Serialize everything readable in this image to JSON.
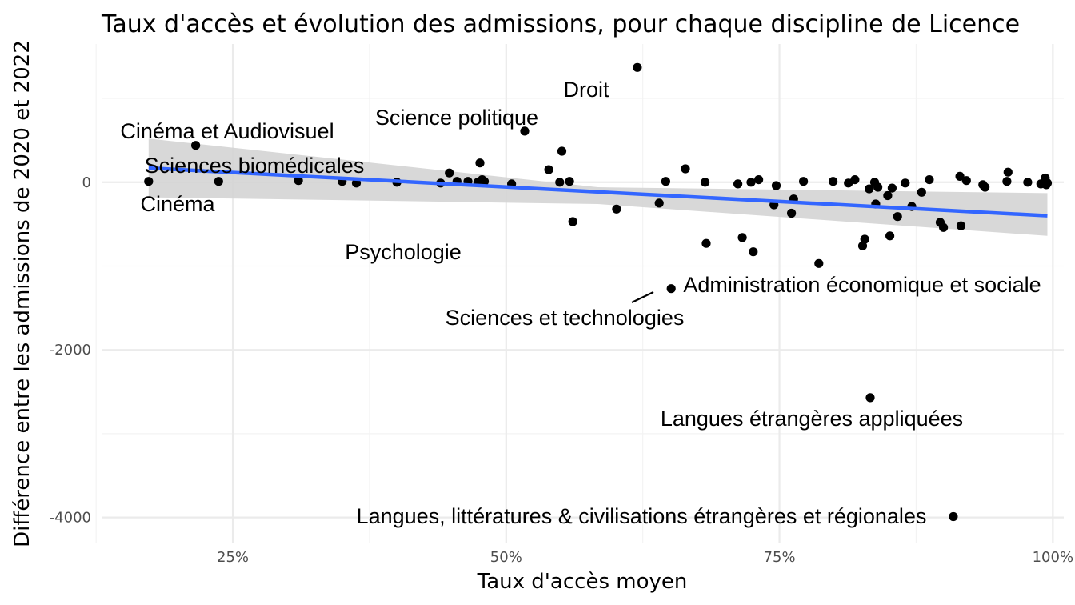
{
  "chart_data": {
    "type": "scatter",
    "title": "Taux d'accès et évolution des admissions, pour chaque discipline de Licence",
    "xlabel": "Taux d'accès moyen",
    "ylabel": "Différence entre les admissions de 2020 et 2022",
    "xlim": [
      0.13,
      1.01
    ],
    "ylim": [
      -4300,
      1650
    ],
    "x_ticks": [
      {
        "value": 0.25,
        "label": "25%"
      },
      {
        "value": 0.5,
        "label": "50%"
      },
      {
        "value": 0.75,
        "label": "75%"
      },
      {
        "value": 1.0,
        "label": "100%"
      }
    ],
    "y_ticks": [
      {
        "value": -4000,
        "label": "-4000"
      },
      {
        "value": -2000,
        "label": "-2000"
      },
      {
        "value": 0,
        "label": "0"
      }
    ],
    "grid": true,
    "point_color": "#000000",
    "trend_line": {
      "method": "lm",
      "color": "#3366ff",
      "band_color": "#d4d4d4",
      "x_range": [
        0.173,
        0.995
      ],
      "y_start": 170,
      "y_end": -400,
      "band_upper_start": 520,
      "band_lower_start": -180,
      "band_upper_mid": -60,
      "band_lower_mid": -260,
      "band_upper_end": -130,
      "band_lower_end": -640
    },
    "points": [
      {
        "x": 0.173,
        "y": 10
      },
      {
        "x": 0.216,
        "y": 440
      },
      {
        "x": 0.237,
        "y": 10
      },
      {
        "x": 0.31,
        "y": 20
      },
      {
        "x": 0.35,
        "y": 10
      },
      {
        "x": 0.363,
        "y": -10
      },
      {
        "x": 0.4,
        "y": 0
      },
      {
        "x": 0.44,
        "y": -10
      },
      {
        "x": 0.448,
        "y": 110
      },
      {
        "x": 0.455,
        "y": 10
      },
      {
        "x": 0.465,
        "y": 10
      },
      {
        "x": 0.474,
        "y": 0
      },
      {
        "x": 0.476,
        "y": 230
      },
      {
        "x": 0.478,
        "y": 30
      },
      {
        "x": 0.48,
        "y": 10
      },
      {
        "x": 0.505,
        "y": -20
      },
      {
        "x": 0.517,
        "y": 610
      },
      {
        "x": 0.539,
        "y": 150
      },
      {
        "x": 0.549,
        "y": 0
      },
      {
        "x": 0.551,
        "y": 370
      },
      {
        "x": 0.558,
        "y": 10
      },
      {
        "x": 0.561,
        "y": -470
      },
      {
        "x": 0.601,
        "y": -320
      },
      {
        "x": 0.62,
        "y": 1370
      },
      {
        "x": 0.64,
        "y": -250
      },
      {
        "x": 0.646,
        "y": 10
      },
      {
        "x": 0.651,
        "y": -1270
      },
      {
        "x": 0.664,
        "y": 160
      },
      {
        "x": 0.682,
        "y": 0
      },
      {
        "x": 0.683,
        "y": -730
      },
      {
        "x": 0.712,
        "y": -20
      },
      {
        "x": 0.716,
        "y": -660
      },
      {
        "x": 0.724,
        "y": 0
      },
      {
        "x": 0.726,
        "y": -830
      },
      {
        "x": 0.731,
        "y": 30
      },
      {
        "x": 0.745,
        "y": -270
      },
      {
        "x": 0.747,
        "y": -40
      },
      {
        "x": 0.761,
        "y": -370
      },
      {
        "x": 0.763,
        "y": -200
      },
      {
        "x": 0.772,
        "y": 10
      },
      {
        "x": 0.786,
        "y": -970
      },
      {
        "x": 0.799,
        "y": 10
      },
      {
        "x": 0.813,
        "y": -10
      },
      {
        "x": 0.819,
        "y": 30
      },
      {
        "x": 0.826,
        "y": -760
      },
      {
        "x": 0.828,
        "y": -680
      },
      {
        "x": 0.832,
        "y": -80
      },
      {
        "x": 0.833,
        "y": -2570
      },
      {
        "x": 0.837,
        "y": 0
      },
      {
        "x": 0.838,
        "y": -260
      },
      {
        "x": 0.84,
        "y": -60
      },
      {
        "x": 0.849,
        "y": -160
      },
      {
        "x": 0.851,
        "y": -640
      },
      {
        "x": 0.853,
        "y": -70
      },
      {
        "x": 0.858,
        "y": -410
      },
      {
        "x": 0.865,
        "y": -10
      },
      {
        "x": 0.871,
        "y": -290
      },
      {
        "x": 0.88,
        "y": -120
      },
      {
        "x": 0.887,
        "y": 30
      },
      {
        "x": 0.897,
        "y": -480
      },
      {
        "x": 0.9,
        "y": -540
      },
      {
        "x": 0.909,
        "y": -3990
      },
      {
        "x": 0.915,
        "y": 70
      },
      {
        "x": 0.916,
        "y": -520
      },
      {
        "x": 0.921,
        "y": 20
      },
      {
        "x": 0.936,
        "y": -30
      },
      {
        "x": 0.938,
        "y": -60
      },
      {
        "x": 0.958,
        "y": 10
      },
      {
        "x": 0.959,
        "y": 120
      },
      {
        "x": 0.977,
        "y": 0
      },
      {
        "x": 0.989,
        "y": -20
      },
      {
        "x": 0.993,
        "y": 50
      },
      {
        "x": 0.994,
        "y": -30
      },
      {
        "x": 0.995,
        "y": -10
      }
    ],
    "annotations": [
      {
        "text": "Droit"
      },
      {
        "text": "Science politique"
      },
      {
        "text": "Cinéma et Audiovisuel"
      },
      {
        "text": "Sciences biomédicales"
      },
      {
        "text": "Cinéma"
      },
      {
        "text": "Psychologie"
      },
      {
        "text": "Administration économique et sociale"
      },
      {
        "text": "Sciences et technologies"
      },
      {
        "text": "Langues étrangères appliquées"
      },
      {
        "text": "Langues, littératures & civilisations étrangères et régionales"
      }
    ]
  }
}
